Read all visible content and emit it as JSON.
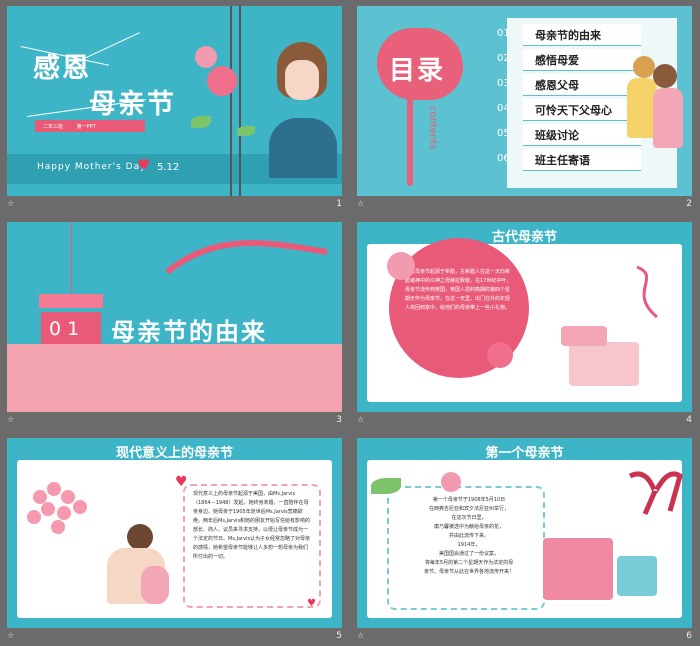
{
  "footer": {
    "star": "☆"
  },
  "slides": [
    {
      "num": "1",
      "title_line1": "感恩",
      "title_line2": "母亲节",
      "sub_left": "二年三班",
      "sub_right": "第一PPT",
      "happy": "Happy Mother's Day",
      "date": "5.12"
    },
    {
      "num": "2",
      "title": "目录",
      "contents_word": "contents",
      "toc": [
        {
          "n": "01",
          "label": "母亲节的由来"
        },
        {
          "n": "02",
          "label": "感悟母爱"
        },
        {
          "n": "03",
          "label": "感恩父母"
        },
        {
          "n": "04",
          "label": "可怜天下父母心"
        },
        {
          "n": "05",
          "label": "班级讨论"
        },
        {
          "n": "06",
          "label": "班主任寄语"
        }
      ]
    },
    {
      "num": "3",
      "box_num": "01",
      "title": "母亲节的由来"
    },
    {
      "num": "4",
      "title": "古代母亲节",
      "text": "古代母亲节起源于希腊，古希腊人在这一天向希腊诸神中的众神之母赫拉致敬。在17世纪中叶，母亲节流传到英国，英国人把封斋期的第四个星期天作为母亲节。在这一天里，出门在外的年轻人将回到家中，给他们的母亲带上一些小礼物。"
    },
    {
      "num": "5",
      "title": "现代意义上的母亲节",
      "text": "现代意义上的母亲节起源于美国，由Ms.Jarvis（1864－1948）发起，她终身未婚，一直陪伴在母亲身边。她母亲于1905年逝世后Ms.Jarvis悲痛欲绝。两年后Ms.Jarvis和她的朋友开始写信给有影响的部长、商人、议员来寻求支持，以便让母亲节成为一个法定的节日。Ms.Jarvis认为子女经常忽略了对母亲的感情，她希望母亲节能够让人多想一想母亲为我们所付出的一切。"
    },
    {
      "num": "6",
      "title": "第一个母亲节",
      "text_lines": [
        "第一个母亲节于1908年5月10日",
        "在西弗吉尼亚和宾夕法尼亚州举行，",
        "在这次节日里，",
        "康乃馨被选中为献给母亲的花，",
        "并由此流传下来。",
        "1914年，",
        "美国国会通过了一份议案，",
        "将每年5月的第二个星期天作为法定的母",
        "亲节。母亲节从此在世界各地流传开来！"
      ]
    }
  ]
}
